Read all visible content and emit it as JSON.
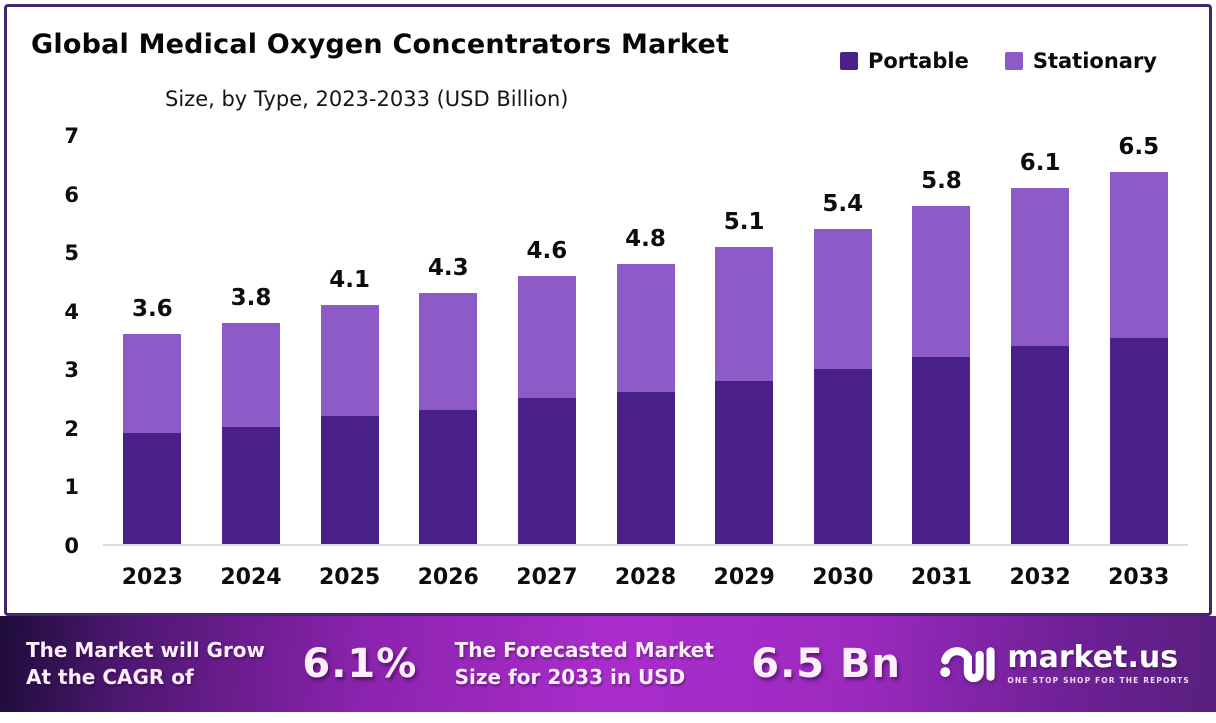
{
  "header": {
    "title": "Global Medical Oxygen Concentrators Market",
    "subtitle": "Size, by Type, 2023-2033 (USD Billion)"
  },
  "legend": [
    {
      "label": "Portable",
      "color": "#4a2189"
    },
    {
      "label": "Stationary",
      "color": "#8c5bc8"
    }
  ],
  "chart_data": {
    "type": "bar",
    "stacked": true,
    "title": "Global Medical Oxygen Concentrators Market Size, by Type, 2023-2033 (USD Billion)",
    "unit": "USD Billion",
    "categories": [
      "2023",
      "2024",
      "2025",
      "2026",
      "2027",
      "2028",
      "2029",
      "2030",
      "2031",
      "2032",
      "2033"
    ],
    "series": [
      {
        "name": "Portable",
        "color": "#4a2189",
        "values": [
          1.9,
          2.0,
          2.2,
          2.3,
          2.5,
          2.6,
          2.8,
          3.0,
          3.2,
          3.4,
          3.6
        ]
      },
      {
        "name": "Stationary",
        "color": "#8c5bc8",
        "values": [
          1.7,
          1.8,
          1.9,
          2.0,
          2.1,
          2.2,
          2.3,
          2.4,
          2.6,
          2.7,
          2.9
        ]
      }
    ],
    "totals": [
      3.6,
      3.8,
      4.1,
      4.3,
      4.6,
      4.8,
      5.1,
      5.4,
      5.8,
      6.1,
      6.5
    ],
    "total_labels": [
      "3.6",
      "3.8",
      "4.1",
      "4.3",
      "4.6",
      "4.8",
      "5.1",
      "5.4",
      "5.8",
      "6.1",
      "6.5"
    ],
    "y_ticks": [
      "7",
      "6",
      "5",
      "4",
      "3",
      "2",
      "1",
      "0"
    ],
    "ylim": [
      0,
      7
    ],
    "grid": false,
    "legend_position": "top-right"
  },
  "banner": {
    "cagr_line1": "The Market will Grow",
    "cagr_line2": "At the CAGR of",
    "cagr_value": "6.1%",
    "forecast_line1": "The Forecasted Market",
    "forecast_line2": "Size for 2033 in USD",
    "forecast_value": "6.5 Bn",
    "brand_name": "market.us",
    "brand_tagline": "ONE STOP SHOP FOR THE REPORTS"
  }
}
